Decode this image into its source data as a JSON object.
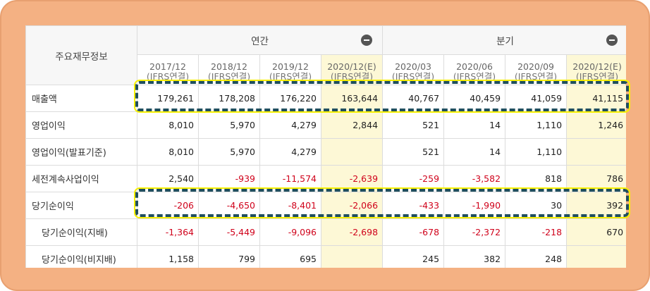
{
  "table": {
    "corner_label": "주요재무정보",
    "group_annual": "연간",
    "group_quarterly": "분기",
    "periods": [
      {
        "period": "2017/12",
        "basis": "(IFRS연결)",
        "estimate": false
      },
      {
        "period": "2018/12",
        "basis": "(IFRS연결)",
        "estimate": false
      },
      {
        "period": "2019/12",
        "basis": "(IFRS연결)",
        "estimate": false
      },
      {
        "period": "2020/12(E)",
        "basis": "(IFRS연결)",
        "estimate": true
      },
      {
        "period": "2020/03",
        "basis": "(IFRS연결)",
        "estimate": false
      },
      {
        "period": "2020/06",
        "basis": "(IFRS연결)",
        "estimate": false
      },
      {
        "period": "2020/09",
        "basis": "(IFRS연결)",
        "estimate": false
      },
      {
        "period": "2020/12(E)",
        "basis": "(IFRS연결)",
        "estimate": true
      }
    ],
    "rows": [
      {
        "label": "매출액",
        "sub": false,
        "values": [
          "179,261",
          "178,208",
          "176,220",
          "163,644",
          "40,767",
          "40,459",
          "41,059",
          "41,115"
        ]
      },
      {
        "label": "영업이익",
        "sub": false,
        "values": [
          "8,010",
          "5,970",
          "4,279",
          "2,844",
          "521",
          "14",
          "1,110",
          "1,246"
        ]
      },
      {
        "label": "영업이익(발표기준)",
        "sub": false,
        "values": [
          "8,010",
          "5,970",
          "4,279",
          "",
          "521",
          "14",
          "1,110",
          ""
        ]
      },
      {
        "label": "세전계속사업이익",
        "sub": false,
        "values": [
          "2,540",
          "-939",
          "-11,574",
          "-2,639",
          "-259",
          "-3,582",
          "818",
          "786"
        ]
      },
      {
        "label": "당기순이익",
        "sub": false,
        "values": [
          "-206",
          "-4,650",
          "-8,401",
          "-2,066",
          "-433",
          "-1,990",
          "30",
          "392"
        ]
      },
      {
        "label": "당기순이익(지배)",
        "sub": true,
        "values": [
          "-1,364",
          "-5,449",
          "-9,096",
          "-2,698",
          "-678",
          "-2,372",
          "-218",
          "670"
        ]
      },
      {
        "label": "당기순이익(비지배)",
        "sub": true,
        "values": [
          "1,158",
          "799",
          "695",
          "",
          "245",
          "382",
          "248",
          ""
        ]
      }
    ]
  },
  "colors": {
    "frame": "#f4b183",
    "estimate_bg": "#fdf8d6",
    "negative": "#d0021b",
    "highlight_dash": "#1f4e5f",
    "highlight_glow": "#f7f000"
  },
  "icons": {
    "collapse_annual": "minus-circle-icon",
    "collapse_quarterly": "minus-circle-icon"
  }
}
